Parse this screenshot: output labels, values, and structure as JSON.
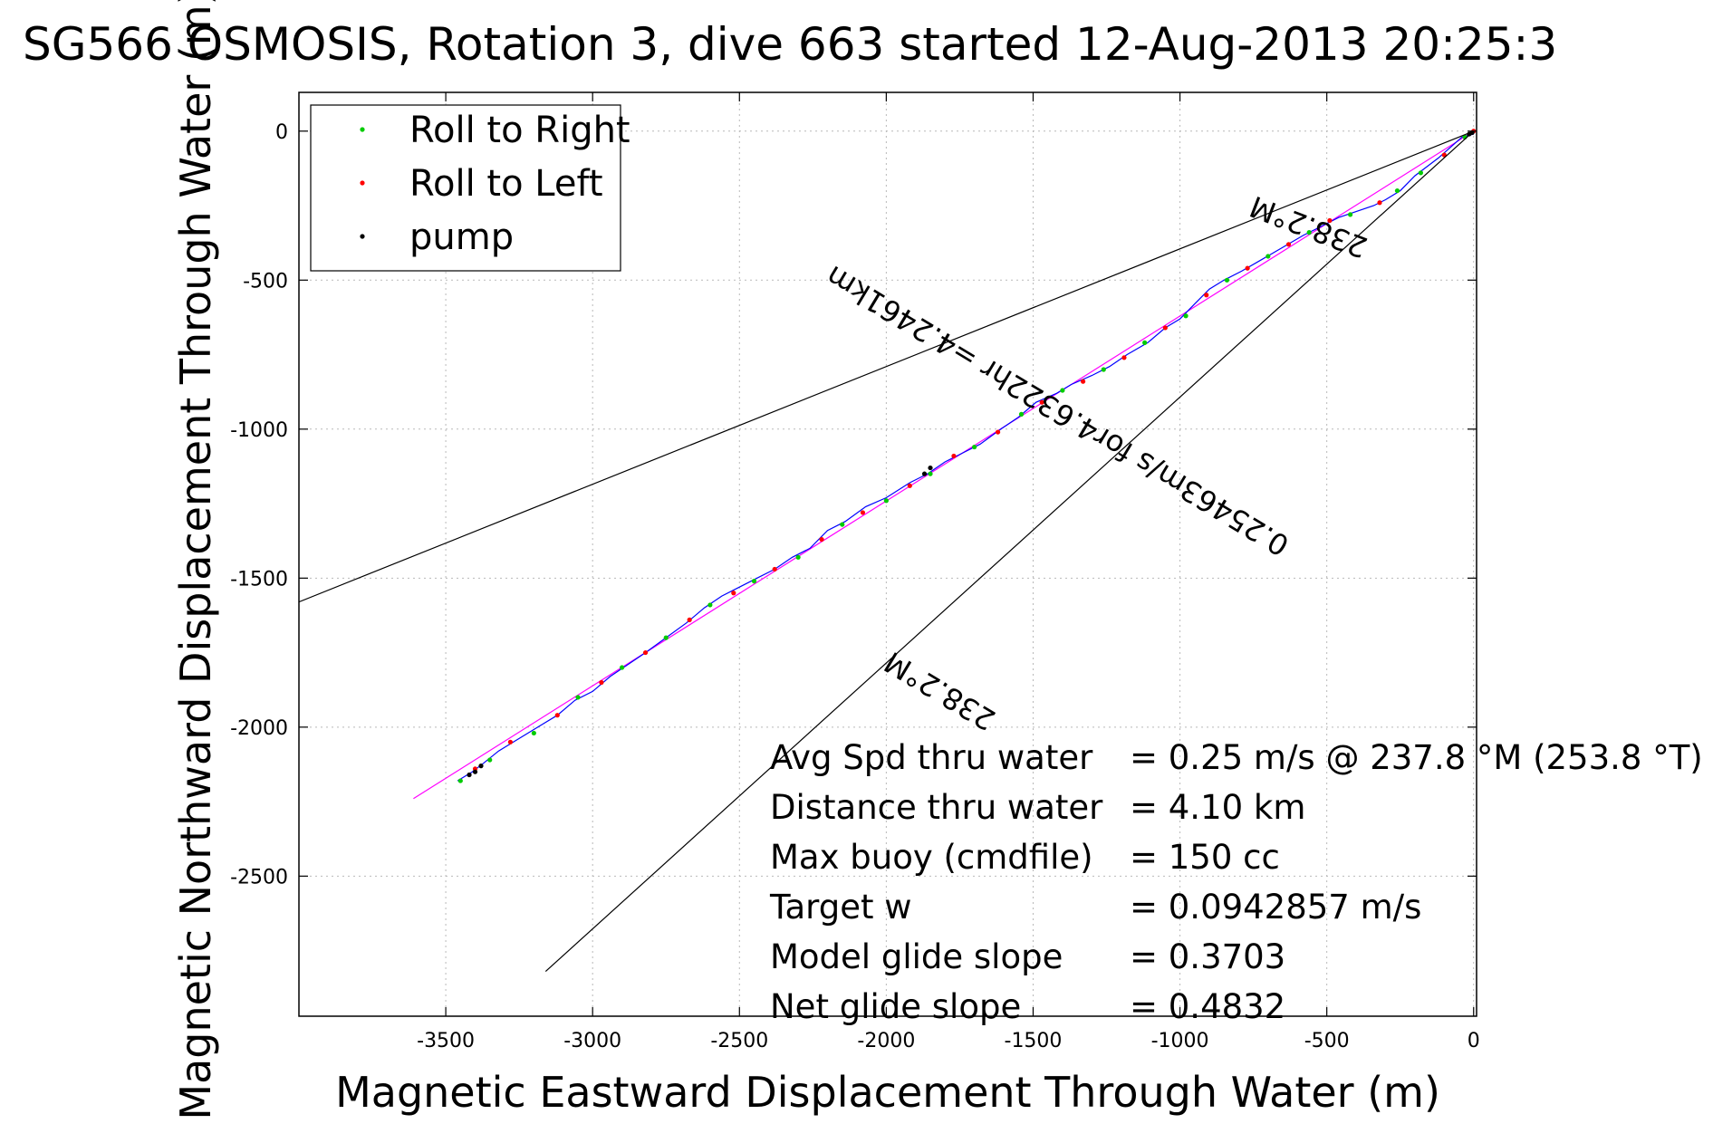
{
  "chart_data": {
    "type": "scatter",
    "title": "SG566 OSMOSIS, Rotation 3, dive 663 started 12-Aug-2013 20:25:3",
    "xlabel": "Magnetic Eastward Displacement Through Water (m)",
    "ylabel": "Magnetic Northward Displacement Through Water (m)",
    "xlim": [
      -4000,
      10
    ],
    "ylim": [
      -2970,
      130
    ],
    "xticks": [
      -3500,
      -3000,
      -2500,
      -2000,
      -1500,
      -1000,
      -500,
      0
    ],
    "yticks": [
      0,
      -500,
      -1000,
      -1500,
      -2000,
      -2500
    ],
    "grid": true,
    "legend": {
      "placement": "top-left",
      "entries": [
        {
          "label": "Roll to Right",
          "color": "#00cc00"
        },
        {
          "label": "Roll to Left",
          "color": "#ff0000"
        },
        {
          "label": "pump",
          "color": "#000000"
        }
      ]
    },
    "series": [
      {
        "type": "line",
        "color": "#ff00ff",
        "points": [
          [
            0,
            0
          ],
          [
            -3610,
            -2240
          ]
        ]
      },
      {
        "type": "line",
        "color": "#0000ff",
        "points": [
          [
            0,
            -10
          ],
          [
            -40,
            -20
          ],
          [
            -120,
            -90
          ],
          [
            -200,
            -150
          ],
          [
            -250,
            -200
          ],
          [
            -300,
            -230
          ],
          [
            -340,
            -250
          ],
          [
            -400,
            -270
          ],
          [
            -460,
            -290
          ],
          [
            -520,
            -320
          ],
          [
            -580,
            -350
          ],
          [
            -650,
            -390
          ],
          [
            -720,
            -430
          ],
          [
            -790,
            -470
          ],
          [
            -850,
            -500
          ],
          [
            -900,
            -530
          ],
          [
            -950,
            -580
          ],
          [
            -1000,
            -630
          ],
          [
            -1050,
            -660
          ],
          [
            -1110,
            -710
          ],
          [
            -1180,
            -750
          ],
          [
            -1240,
            -790
          ],
          [
            -1300,
            -820
          ],
          [
            -1370,
            -850
          ],
          [
            -1420,
            -880
          ],
          [
            -1490,
            -910
          ],
          [
            -1550,
            -960
          ],
          [
            -1610,
            -1000
          ],
          [
            -1680,
            -1050
          ],
          [
            -1740,
            -1080
          ],
          [
            -1800,
            -1110
          ],
          [
            -1860,
            -1150
          ],
          [
            -1920,
            -1180
          ],
          [
            -2000,
            -1230
          ],
          [
            -2070,
            -1260
          ],
          [
            -2140,
            -1310
          ],
          [
            -2200,
            -1340
          ],
          [
            -2260,
            -1400
          ],
          [
            -2320,
            -1430
          ],
          [
            -2380,
            -1470
          ],
          [
            -2440,
            -1500
          ],
          [
            -2500,
            -1530
          ],
          [
            -2560,
            -1560
          ],
          [
            -2620,
            -1600
          ],
          [
            -2680,
            -1650
          ],
          [
            -2750,
            -1700
          ],
          [
            -2820,
            -1750
          ],
          [
            -2880,
            -1790
          ],
          [
            -2940,
            -1830
          ],
          [
            -3000,
            -1880
          ],
          [
            -3060,
            -1910
          ],
          [
            -3120,
            -1960
          ],
          [
            -3170,
            -1990
          ],
          [
            -3220,
            -2020
          ],
          [
            -3270,
            -2050
          ],
          [
            -3320,
            -2080
          ],
          [
            -3370,
            -2120
          ],
          [
            -3410,
            -2150
          ],
          [
            -3460,
            -2180
          ]
        ]
      },
      {
        "type": "markers",
        "name": "Roll to Right",
        "color": "#00cc00",
        "points": [
          [
            -30,
            -20
          ],
          [
            -180,
            -140
          ],
          [
            -260,
            -200
          ],
          [
            -420,
            -280
          ],
          [
            -560,
            -340
          ],
          [
            -700,
            -420
          ],
          [
            -840,
            -500
          ],
          [
            -980,
            -620
          ],
          [
            -1120,
            -710
          ],
          [
            -1260,
            -800
          ],
          [
            -1400,
            -870
          ],
          [
            -1540,
            -950
          ],
          [
            -1700,
            -1060
          ],
          [
            -1850,
            -1150
          ],
          [
            -2000,
            -1240
          ],
          [
            -2150,
            -1320
          ],
          [
            -2300,
            -1430
          ],
          [
            -2450,
            -1510
          ],
          [
            -2600,
            -1590
          ],
          [
            -2750,
            -1700
          ],
          [
            -2900,
            -1800
          ],
          [
            -3050,
            -1900
          ],
          [
            -3200,
            -2020
          ],
          [
            -3350,
            -2110
          ],
          [
            -3450,
            -2180
          ]
        ]
      },
      {
        "type": "markers",
        "name": "Roll to Left",
        "color": "#ff0000",
        "points": [
          [
            0,
            0
          ],
          [
            -100,
            -80
          ],
          [
            -320,
            -240
          ],
          [
            -490,
            -300
          ],
          [
            -630,
            -380
          ],
          [
            -770,
            -460
          ],
          [
            -910,
            -550
          ],
          [
            -1050,
            -660
          ],
          [
            -1190,
            -760
          ],
          [
            -1330,
            -840
          ],
          [
            -1470,
            -910
          ],
          [
            -1620,
            -1010
          ],
          [
            -1770,
            -1090
          ],
          [
            -1920,
            -1190
          ],
          [
            -2080,
            -1280
          ],
          [
            -2220,
            -1370
          ],
          [
            -2380,
            -1470
          ],
          [
            -2520,
            -1550
          ],
          [
            -2670,
            -1640
          ],
          [
            -2820,
            -1750
          ],
          [
            -2970,
            -1850
          ],
          [
            -3120,
            -1960
          ],
          [
            -3280,
            -2050
          ],
          [
            -3400,
            -2140
          ]
        ]
      },
      {
        "type": "markers",
        "name": "pump",
        "color": "#000000",
        "points": [
          [
            -5,
            -5
          ],
          [
            -15,
            -10
          ],
          [
            -1850,
            -1130
          ],
          [
            -1870,
            -1150
          ],
          [
            -3380,
            -2130
          ],
          [
            -3400,
            -2150
          ],
          [
            -3420,
            -2160
          ]
        ]
      },
      {
        "type": "line",
        "color": "#000000",
        "points": [
          [
            0,
            0
          ],
          [
            -4000,
            -1580
          ]
        ]
      },
      {
        "type": "line",
        "color": "#000000",
        "points": [
          [
            0,
            0
          ],
          [
            -3160,
            -2820
          ]
        ]
      }
    ],
    "annotations": [
      {
        "text": "238.2°M",
        "x": -1800,
        "y": -1850,
        "angle": 211
      },
      {
        "text": "238.2°M",
        "x": -550,
        "y": -290,
        "angle": 201
      },
      {
        "text": "0.25463m/s for4.6322hr =4.2461km",
        "x": -1400,
        "y": -910,
        "angle": 211
      }
    ],
    "stats": [
      {
        "label": "Avg Spd thru water",
        "value": "=  0.25 m/s @ 237.8 °M (253.8 °T)"
      },
      {
        "label": "Distance thru water",
        "value": "=  4.10 km"
      },
      {
        "label": "Max buoy (cmdfile)",
        "value": "= 150 cc"
      },
      {
        "label": "Target w",
        "value": "= 0.0942857 m/s"
      },
      {
        "label": "Model glide slope",
        "value": "= 0.3703"
      },
      {
        "label": "Net glide slope",
        "value": "= 0.4832"
      }
    ]
  }
}
